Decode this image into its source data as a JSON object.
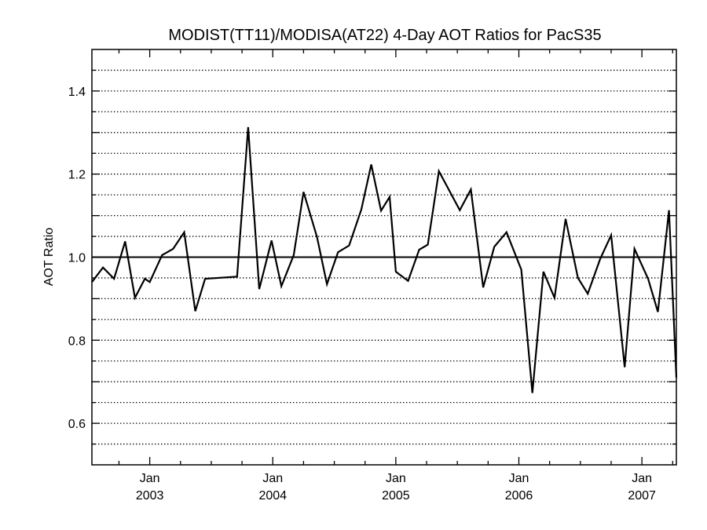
{
  "chart_data": {
    "type": "line",
    "title": "MODIST(TT11)/MODISA(AT22) 4-Day AOT Ratios for PacS35",
    "xlabel": "",
    "ylabel": "AOT Ratio",
    "ylim": [
      0.5,
      1.5
    ],
    "y_ticks": [
      "0.6",
      "0.8",
      "1.0",
      "1.2",
      "1.4"
    ],
    "y_tick_values": [
      0.6,
      0.8,
      1.0,
      1.2,
      1.4
    ],
    "x_ticks": [
      {
        "month": "Jan",
        "year": "2003",
        "x": 2003.0
      },
      {
        "month": "Jan",
        "year": "2004",
        "x": 2004.0
      },
      {
        "month": "Jan",
        "year": "2005",
        "x": 2005.0
      },
      {
        "month": "Jan",
        "year": "2006",
        "x": 2006.0
      },
      {
        "month": "Jan",
        "year": "2007",
        "x": 2007.0
      }
    ],
    "xlim": [
      2002.53,
      2007.28
    ],
    "grid": "dotted horizontal every 0.05",
    "reference_line": 1.0,
    "series": [
      {
        "x": [
          2002.53,
          2002.62,
          2002.71,
          2002.8,
          2002.88,
          2002.96,
          2003.0,
          2003.1,
          2003.19,
          2003.28,
          2003.37,
          2003.45,
          2003.71,
          2003.8,
          2003.89,
          2003.99,
          2004.07,
          2004.17,
          2004.25,
          2004.36,
          2004.44,
          2004.53,
          2004.62,
          2004.72,
          2004.8,
          2004.88,
          2004.95,
          2005.0,
          2005.1,
          2005.19,
          2005.26,
          2005.35,
          2005.52,
          2005.61,
          2005.71,
          2005.8,
          2005.9,
          2006.02,
          2006.11,
          2006.2,
          2006.29,
          2006.38,
          2006.48,
          2006.56,
          2006.66,
          2006.75,
          2006.86,
          2006.94,
          2007.05,
          2007.13,
          2007.22,
          2007.28
        ],
        "y": [
          0.94,
          0.975,
          0.948,
          1.038,
          0.902,
          0.948,
          0.94,
          1.005,
          1.02,
          1.06,
          0.87,
          0.948,
          0.953,
          1.313,
          0.923,
          1.04,
          0.93,
          1.005,
          1.157,
          1.048,
          0.935,
          1.012,
          1.028,
          1.115,
          1.223,
          1.112,
          1.145,
          0.965,
          0.943,
          1.018,
          1.03,
          1.207,
          1.113,
          1.163,
          0.927,
          1.025,
          1.06,
          0.97,
          0.673,
          0.965,
          0.902,
          1.092,
          0.95,
          0.912,
          0.995,
          1.053,
          0.735,
          1.02,
          0.948,
          0.868,
          1.113,
          0.71
        ]
      }
    ]
  }
}
